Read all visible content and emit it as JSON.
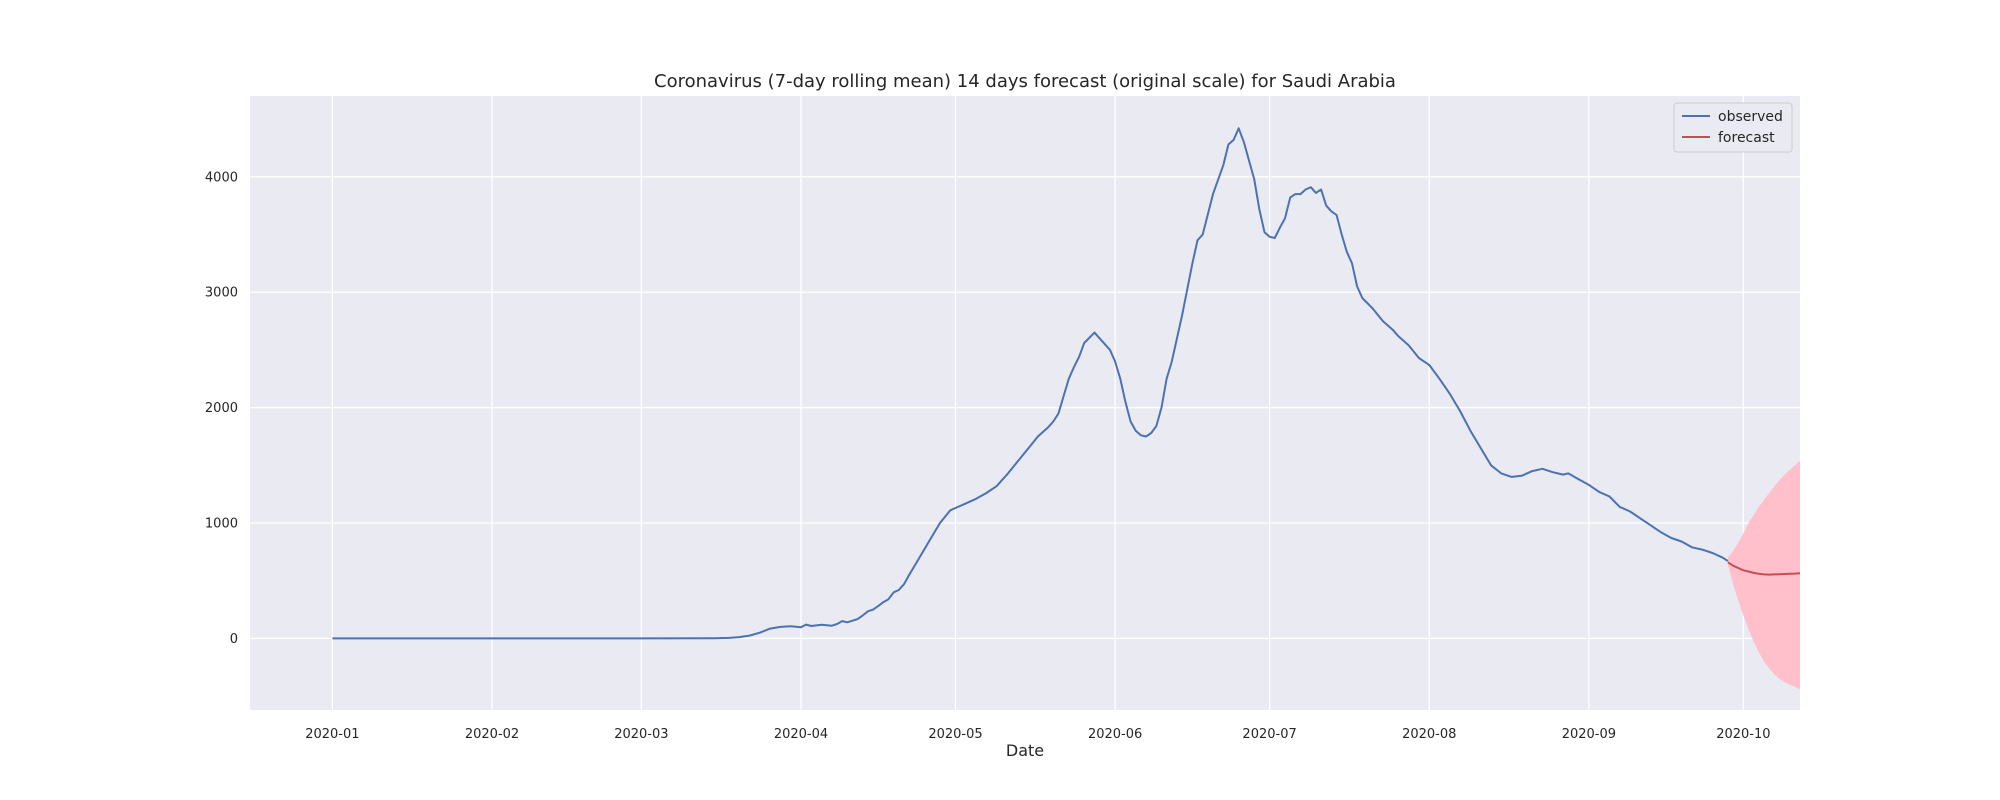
{
  "chart_data": {
    "type": "line",
    "title": "Coronavirus (7-day rolling mean) 14 days forecast (original scale) for Saudi Arabia",
    "xlabel": "Date",
    "ylabel": "",
    "x_axis": "date",
    "xlim": [
      "2019-12-16",
      "2020-10-12"
    ],
    "ylim": [
      -620,
      4700
    ],
    "grid": true,
    "legend_position": "top-right",
    "xticks": [
      "2020-01-01",
      "2020-02-01",
      "2020-03-01",
      "2020-04-01",
      "2020-05-01",
      "2020-06-01",
      "2020-07-01",
      "2020-08-01",
      "2020-09-01",
      "2020-10-01"
    ],
    "xtick_labels": [
      "2020-01",
      "2020-02",
      "2020-03",
      "2020-04",
      "2020-05",
      "2020-06",
      "2020-07",
      "2020-08",
      "2020-09",
      "2020-10"
    ],
    "yticks": [
      0,
      1000,
      2000,
      3000,
      4000
    ],
    "ytick_labels": [
      "0",
      "1000",
      "2000",
      "3000",
      "4000"
    ],
    "colors": {
      "background": "#eaeaf2",
      "grid": "#ffffff",
      "observed": "#4c72b0",
      "forecast": "#c44e52",
      "interval": "#ffc0cb"
    },
    "series": [
      {
        "name": "observed",
        "points": [
          [
            "2020-01-01",
            0
          ],
          [
            "2020-02-01",
            0
          ],
          [
            "2020-03-01",
            0
          ],
          [
            "2020-03-15",
            2
          ],
          [
            "2020-03-18",
            5
          ],
          [
            "2020-03-20",
            12
          ],
          [
            "2020-03-22",
            25
          ],
          [
            "2020-03-24",
            50
          ],
          [
            "2020-03-26",
            85
          ],
          [
            "2020-03-28",
            100
          ],
          [
            "2020-03-30",
            105
          ],
          [
            "2020-04-01",
            97
          ],
          [
            "2020-04-02",
            120
          ],
          [
            "2020-04-03",
            108
          ],
          [
            "2020-04-05",
            118
          ],
          [
            "2020-04-07",
            110
          ],
          [
            "2020-04-08",
            125
          ],
          [
            "2020-04-09",
            150
          ],
          [
            "2020-04-10",
            140
          ],
          [
            "2020-04-12",
            168
          ],
          [
            "2020-04-13",
            200
          ],
          [
            "2020-04-14",
            235
          ],
          [
            "2020-04-15",
            250
          ],
          [
            "2020-04-16",
            280
          ],
          [
            "2020-04-17",
            315
          ],
          [
            "2020-04-18",
            340
          ],
          [
            "2020-04-19",
            400
          ],
          [
            "2020-04-20",
            420
          ],
          [
            "2020-04-21",
            470
          ],
          [
            "2020-04-22",
            550
          ],
          [
            "2020-04-24",
            700
          ],
          [
            "2020-04-26",
            850
          ],
          [
            "2020-04-28",
            1000
          ],
          [
            "2020-04-30",
            1110
          ],
          [
            "2020-05-01",
            1130
          ],
          [
            "2020-05-03",
            1170
          ],
          [
            "2020-05-05",
            1210
          ],
          [
            "2020-05-07",
            1260
          ],
          [
            "2020-05-09",
            1320
          ],
          [
            "2020-05-11",
            1420
          ],
          [
            "2020-05-13",
            1530
          ],
          [
            "2020-05-15",
            1640
          ],
          [
            "2020-05-17",
            1750
          ],
          [
            "2020-05-19",
            1830
          ],
          [
            "2020-05-20",
            1880
          ],
          [
            "2020-05-21",
            1950
          ],
          [
            "2020-05-22",
            2100
          ],
          [
            "2020-05-23",
            2250
          ],
          [
            "2020-05-24",
            2350
          ],
          [
            "2020-05-25",
            2440
          ],
          [
            "2020-05-26",
            2560
          ],
          [
            "2020-05-28",
            2650
          ],
          [
            "2020-05-29",
            2600
          ],
          [
            "2020-05-31",
            2500
          ],
          [
            "2020-06-01",
            2400
          ],
          [
            "2020-06-02",
            2250
          ],
          [
            "2020-06-03",
            2050
          ],
          [
            "2020-06-04",
            1880
          ],
          [
            "2020-06-05",
            1800
          ],
          [
            "2020-06-06",
            1760
          ],
          [
            "2020-06-07",
            1750
          ],
          [
            "2020-06-08",
            1780
          ],
          [
            "2020-06-09",
            1840
          ],
          [
            "2020-06-10",
            2000
          ],
          [
            "2020-06-11",
            2250
          ],
          [
            "2020-06-12",
            2400
          ],
          [
            "2020-06-14",
            2800
          ],
          [
            "2020-06-16",
            3250
          ],
          [
            "2020-06-17",
            3450
          ],
          [
            "2020-06-18",
            3500
          ],
          [
            "2020-06-20",
            3850
          ],
          [
            "2020-06-22",
            4100
          ],
          [
            "2020-06-23",
            4280
          ],
          [
            "2020-06-24",
            4320
          ],
          [
            "2020-06-25",
            4420
          ],
          [
            "2020-06-26",
            4300
          ],
          [
            "2020-06-28",
            3980
          ],
          [
            "2020-06-29",
            3720
          ],
          [
            "2020-06-30",
            3520
          ],
          [
            "2020-07-01",
            3480
          ],
          [
            "2020-07-02",
            3470
          ],
          [
            "2020-07-03",
            3560
          ],
          [
            "2020-07-04",
            3640
          ],
          [
            "2020-07-05",
            3820
          ],
          [
            "2020-07-06",
            3850
          ],
          [
            "2020-07-07",
            3850
          ],
          [
            "2020-07-08",
            3890
          ],
          [
            "2020-07-09",
            3910
          ],
          [
            "2020-07-10",
            3860
          ],
          [
            "2020-07-11",
            3890
          ],
          [
            "2020-07-12",
            3750
          ],
          [
            "2020-07-13",
            3700
          ],
          [
            "2020-07-14",
            3670
          ],
          [
            "2020-07-15",
            3500
          ],
          [
            "2020-07-16",
            3350
          ],
          [
            "2020-07-17",
            3250
          ],
          [
            "2020-07-18",
            3050
          ],
          [
            "2020-07-19",
            2950
          ],
          [
            "2020-07-21",
            2860
          ],
          [
            "2020-07-23",
            2750
          ],
          [
            "2020-07-25",
            2670
          ],
          [
            "2020-07-26",
            2620
          ],
          [
            "2020-07-28",
            2540
          ],
          [
            "2020-07-30",
            2430
          ],
          [
            "2020-08-01",
            2370
          ],
          [
            "2020-08-03",
            2250
          ],
          [
            "2020-08-05",
            2120
          ],
          [
            "2020-08-07",
            1970
          ],
          [
            "2020-08-09",
            1800
          ],
          [
            "2020-08-11",
            1650
          ],
          [
            "2020-08-13",
            1500
          ],
          [
            "2020-08-15",
            1430
          ],
          [
            "2020-08-17",
            1400
          ],
          [
            "2020-08-19",
            1410
          ],
          [
            "2020-08-21",
            1450
          ],
          [
            "2020-08-23",
            1470
          ],
          [
            "2020-08-25",
            1440
          ],
          [
            "2020-08-27",
            1420
          ],
          [
            "2020-08-28",
            1430
          ],
          [
            "2020-08-30",
            1380
          ],
          [
            "2020-09-01",
            1330
          ],
          [
            "2020-09-03",
            1270
          ],
          [
            "2020-09-05",
            1230
          ],
          [
            "2020-09-07",
            1140
          ],
          [
            "2020-09-09",
            1100
          ],
          [
            "2020-09-11",
            1040
          ],
          [
            "2020-09-13",
            980
          ],
          [
            "2020-09-15",
            920
          ],
          [
            "2020-09-17",
            870
          ],
          [
            "2020-09-19",
            840
          ],
          [
            "2020-09-21",
            790
          ],
          [
            "2020-09-23",
            770
          ],
          [
            "2020-09-25",
            740
          ],
          [
            "2020-09-27",
            700
          ],
          [
            "2020-09-28",
            670
          ]
        ]
      },
      {
        "name": "forecast",
        "points": [
          [
            "2020-09-28",
            660
          ],
          [
            "2020-09-29",
            630
          ],
          [
            "2020-09-30",
            610
          ],
          [
            "2020-10-01",
            590
          ],
          [
            "2020-10-02",
            580
          ],
          [
            "2020-10-03",
            568
          ],
          [
            "2020-10-04",
            560
          ],
          [
            "2020-10-05",
            555
          ],
          [
            "2020-10-06",
            553
          ],
          [
            "2020-10-07",
            555
          ],
          [
            "2020-10-08",
            557
          ],
          [
            "2020-10-09",
            558
          ],
          [
            "2020-10-10",
            560
          ],
          [
            "2020-10-11",
            562
          ],
          [
            "2020-10-12",
            565
          ]
        ],
        "lower": [
          640,
          470,
          330,
          200,
          80,
          -30,
          -120,
          -200,
          -260,
          -310,
          -350,
          -380,
          -400,
          -420,
          -440
        ],
        "upper": [
          700,
          760,
          830,
          910,
          1000,
          1070,
          1140,
          1200,
          1260,
          1320,
          1370,
          1420,
          1460,
          1500,
          1540
        ]
      }
    ]
  }
}
